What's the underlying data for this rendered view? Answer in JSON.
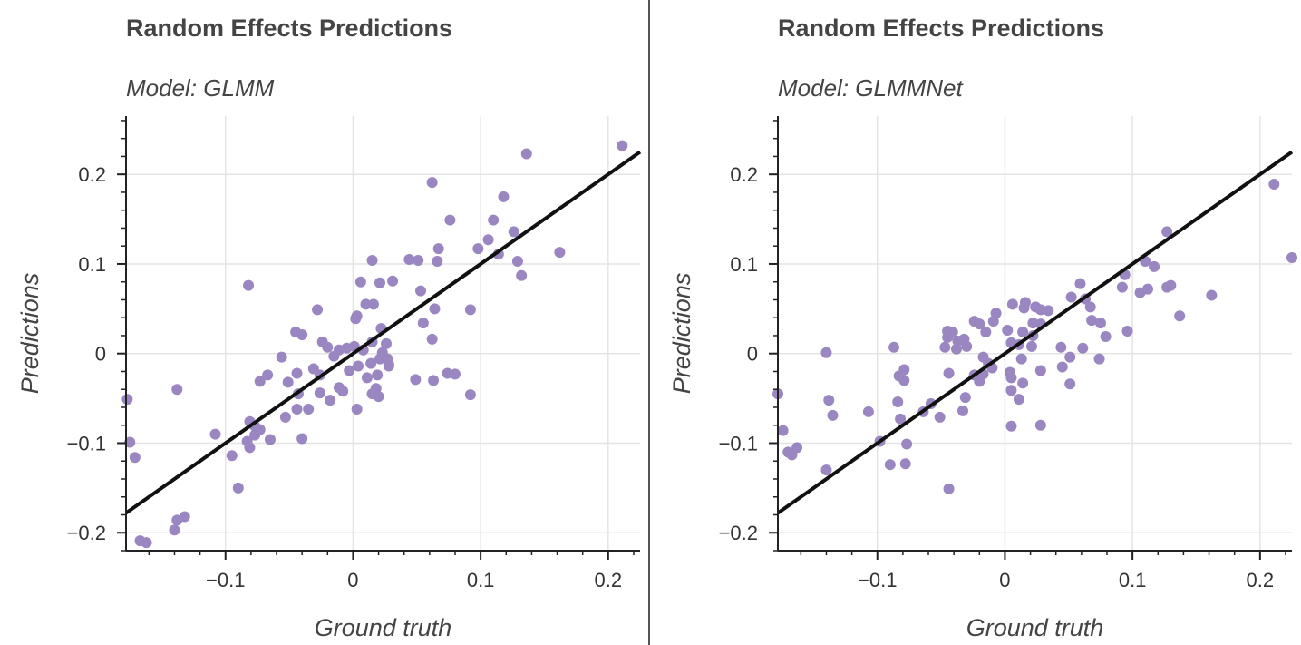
{
  "colors": {
    "point": "#9a87c2",
    "line": "#111111",
    "grid": "#e4e4e4",
    "axis": "#222222"
  },
  "chart_data": [
    {
      "type": "scatter",
      "title": "Random Effects Predictions",
      "subtitle": "Model: GLMM",
      "xlabel": "Ground truth",
      "ylabel": "Predictions",
      "xlim": [
        -0.178,
        0.225
      ],
      "ylim": [
        -0.22,
        0.265
      ],
      "xticks": [
        -0.1,
        0,
        0.1,
        0.2
      ],
      "yticks": [
        -0.2,
        -0.1,
        0,
        0.1,
        0.2
      ],
      "xtick_labels": [
        "−0.1",
        "0",
        "0.1",
        "0.2"
      ],
      "ytick_labels": [
        "−0.2",
        "−0.1",
        "0",
        "0.1",
        "0.2"
      ],
      "grid": true,
      "reference_line": [
        [
          -0.178,
          -0.178
        ],
        [
          0.225,
          0.225
        ]
      ],
      "points": [
        [
          0.211,
          0.232
        ],
        [
          0.136,
          0.223
        ],
        [
          0.062,
          0.191
        ],
        [
          0.118,
          0.175
        ],
        [
          0.11,
          0.149
        ],
        [
          0.076,
          0.149
        ],
        [
          0.126,
          0.136
        ],
        [
          0.106,
          0.127
        ],
        [
          0.098,
          0.117
        ],
        [
          0.067,
          0.117
        ],
        [
          0.162,
          0.113
        ],
        [
          0.114,
          0.111
        ],
        [
          0.044,
          0.105
        ],
        [
          0.051,
          0.104
        ],
        [
          0.015,
          0.104
        ],
        [
          0.066,
          0.103
        ],
        [
          0.129,
          0.103
        ],
        [
          0.132,
          0.087
        ],
        [
          0.031,
          0.081
        ],
        [
          0.006,
          0.08
        ],
        [
          0.021,
          0.079
        ],
        [
          -0.082,
          0.076
        ],
        [
          0.053,
          0.07
        ],
        [
          0.016,
          0.055
        ],
        [
          0.01,
          0.055
        ],
        [
          -0.028,
          0.049
        ],
        [
          0.064,
          0.05
        ],
        [
          0.092,
          0.049
        ],
        [
          0.003,
          0.042
        ],
        [
          0.002,
          0.039
        ],
        [
          0.055,
          0.034
        ],
        [
          0.022,
          0.028
        ],
        [
          -0.045,
          0.024
        ],
        [
          -0.04,
          0.021
        ],
        [
          0.026,
          0.011
        ],
        [
          -0.024,
          0.013
        ],
        [
          -0.02,
          0.007
        ],
        [
          -0.011,
          0.004
        ],
        [
          -0.005,
          0.006
        ],
        [
          0.001,
          0.008
        ],
        [
          0.008,
          0.004
        ],
        [
          0.015,
          0.013
        ],
        [
          0.023,
          0.001
        ],
        [
          0.027,
          -0.006
        ],
        [
          0.028,
          -0.014
        ],
        [
          -0.056,
          -0.004
        ],
        [
          0.062,
          0.016
        ],
        [
          -0.015,
          -0.003
        ],
        [
          0.004,
          -0.014
        ],
        [
          0.014,
          -0.011
        ],
        [
          0.021,
          -0.006
        ],
        [
          0.028,
          -0.012
        ],
        [
          0.019,
          -0.024
        ],
        [
          0.011,
          -0.027
        ],
        [
          -0.003,
          -0.019
        ],
        [
          -0.031,
          -0.017
        ],
        [
          -0.067,
          -0.024
        ],
        [
          -0.044,
          -0.022
        ],
        [
          -0.051,
          -0.032
        ],
        [
          -0.073,
          -0.031
        ],
        [
          -0.026,
          -0.024
        ],
        [
          0.063,
          -0.03
        ],
        [
          0.049,
          -0.029
        ],
        [
          0.074,
          -0.022
        ],
        [
          0.08,
          -0.023
        ],
        [
          0.092,
          -0.046
        ],
        [
          0.015,
          -0.045
        ],
        [
          0.02,
          -0.048
        ],
        [
          0.018,
          -0.039
        ],
        [
          -0.011,
          -0.038
        ],
        [
          -0.026,
          -0.044
        ],
        [
          -0.018,
          -0.052
        ],
        [
          -0.008,
          -0.042
        ],
        [
          -0.043,
          -0.045
        ],
        [
          -0.035,
          -0.062
        ],
        [
          -0.044,
          -0.062
        ],
        [
          -0.053,
          -0.071
        ],
        [
          0.003,
          -0.062
        ],
        [
          -0.065,
          -0.096
        ],
        [
          -0.077,
          -0.081
        ],
        [
          -0.081,
          -0.076
        ],
        [
          -0.073,
          -0.085
        ],
        [
          -0.077,
          -0.091
        ],
        [
          -0.04,
          -0.095
        ],
        [
          -0.083,
          -0.098
        ],
        [
          -0.081,
          -0.105
        ],
        [
          -0.108,
          -0.09
        ],
        [
          -0.095,
          -0.114
        ],
        [
          -0.09,
          -0.15
        ],
        [
          -0.138,
          -0.04
        ],
        [
          -0.177,
          -0.051
        ],
        [
          -0.175,
          -0.099
        ],
        [
          -0.171,
          -0.116
        ],
        [
          -0.14,
          -0.197
        ],
        [
          -0.138,
          -0.186
        ],
        [
          -0.132,
          -0.182
        ],
        [
          -0.167,
          -0.209
        ],
        [
          -0.162,
          -0.211
        ]
      ]
    },
    {
      "type": "scatter",
      "title": "Random Effects Predictions",
      "subtitle": "Model: GLMMNet",
      "xlabel": "Ground truth",
      "ylabel": "Predictions",
      "xlim": [
        -0.178,
        0.225
      ],
      "ylim": [
        -0.22,
        0.265
      ],
      "xticks": [
        -0.1,
        0,
        0.1,
        0.2
      ],
      "yticks": [
        -0.2,
        -0.1,
        0,
        0.1,
        0.2
      ],
      "xtick_labels": [
        "−0.1",
        "0",
        "0.1",
        "0.2"
      ],
      "ytick_labels": [
        "−0.2",
        "−0.1",
        "0",
        "0.1",
        "0.2"
      ],
      "grid": true,
      "reference_line": [
        [
          -0.178,
          -0.178
        ],
        [
          0.225,
          0.225
        ]
      ],
      "points": [
        [
          0.211,
          0.189
        ],
        [
          0.225,
          0.107
        ],
        [
          0.127,
          0.136
        ],
        [
          0.11,
          0.103
        ],
        [
          0.117,
          0.097
        ],
        [
          0.13,
          0.076
        ],
        [
          0.127,
          0.074
        ],
        [
          0.112,
          0.072
        ],
        [
          0.092,
          0.074
        ],
        [
          0.106,
          0.068
        ],
        [
          0.162,
          0.065
        ],
        [
          0.094,
          0.088
        ],
        [
          0.137,
          0.042
        ],
        [
          0.059,
          0.078
        ],
        [
          0.052,
          0.063
        ],
        [
          0.063,
          0.061
        ],
        [
          0.067,
          0.052
        ],
        [
          0.068,
          0.037
        ],
        [
          0.075,
          0.034
        ],
        [
          0.079,
          0.019
        ],
        [
          0.096,
          0.025
        ],
        [
          0.074,
          -0.006
        ],
        [
          0.061,
          0.006
        ],
        [
          0.044,
          0.007
        ],
        [
          0.051,
          -0.034
        ],
        [
          0.051,
          -0.004
        ],
        [
          0.034,
          0.048
        ],
        [
          0.028,
          0.049
        ],
        [
          0.024,
          0.052
        ],
        [
          0.016,
          0.057
        ],
        [
          0.015,
          0.051
        ],
        [
          0.006,
          0.055
        ],
        [
          0.022,
          0.034
        ],
        [
          0.028,
          0.033
        ],
        [
          0.022,
          0.02
        ],
        [
          0.014,
          0.024
        ],
        [
          0.011,
          0.01
        ],
        [
          0.021,
          0.008
        ],
        [
          0.005,
          0.012
        ],
        [
          0.002,
          0.026
        ],
        [
          -0.007,
          0.045
        ],
        [
          -0.009,
          0.036
        ],
        [
          -0.015,
          0.024
        ],
        [
          -0.02,
          0.033
        ],
        [
          -0.024,
          0.036
        ],
        [
          -0.032,
          0.016
        ],
        [
          -0.037,
          0.014
        ],
        [
          -0.045,
          0.018
        ],
        [
          -0.038,
          0.005
        ],
        [
          -0.03,
          0.008
        ],
        [
          -0.045,
          0.025
        ],
        [
          -0.041,
          0.024
        ],
        [
          -0.047,
          0.007
        ],
        [
          -0.044,
          -0.022
        ],
        [
          -0.017,
          -0.023
        ],
        [
          -0.013,
          -0.011
        ],
        [
          0.004,
          -0.021
        ],
        [
          0.005,
          -0.027
        ],
        [
          0.013,
          -0.006
        ],
        [
          0.028,
          -0.019
        ],
        [
          0.045,
          -0.015
        ],
        [
          0.014,
          -0.033
        ],
        [
          -0.017,
          -0.004
        ],
        [
          -0.01,
          -0.016
        ],
        [
          -0.02,
          -0.031
        ],
        [
          -0.024,
          -0.024
        ],
        [
          -0.031,
          -0.049
        ],
        [
          -0.033,
          -0.064
        ],
        [
          -0.051,
          -0.071
        ],
        [
          -0.058,
          -0.056
        ],
        [
          -0.064,
          -0.065
        ],
        [
          -0.079,
          -0.018
        ],
        [
          -0.079,
          -0.03
        ],
        [
          -0.083,
          -0.025
        ],
        [
          -0.087,
          0.007
        ],
        [
          -0.084,
          -0.054
        ],
        [
          -0.082,
          -0.073
        ],
        [
          -0.077,
          -0.101
        ],
        [
          -0.078,
          -0.123
        ],
        [
          -0.09,
          -0.124
        ],
        [
          -0.107,
          -0.065
        ],
        [
          -0.135,
          -0.069
        ],
        [
          -0.138,
          -0.052
        ],
        [
          -0.14,
          0.001
        ],
        [
          -0.044,
          -0.151
        ],
        [
          -0.14,
          -0.13
        ],
        [
          -0.098,
          -0.098
        ],
        [
          -0.178,
          -0.045
        ],
        [
          -0.174,
          -0.086
        ],
        [
          -0.17,
          -0.11
        ],
        [
          -0.167,
          -0.113
        ],
        [
          -0.163,
          -0.105
        ],
        [
          0.005,
          -0.041
        ],
        [
          0.005,
          -0.081
        ],
        [
          0.011,
          -0.051
        ],
        [
          0.028,
          -0.08
        ]
      ]
    }
  ]
}
